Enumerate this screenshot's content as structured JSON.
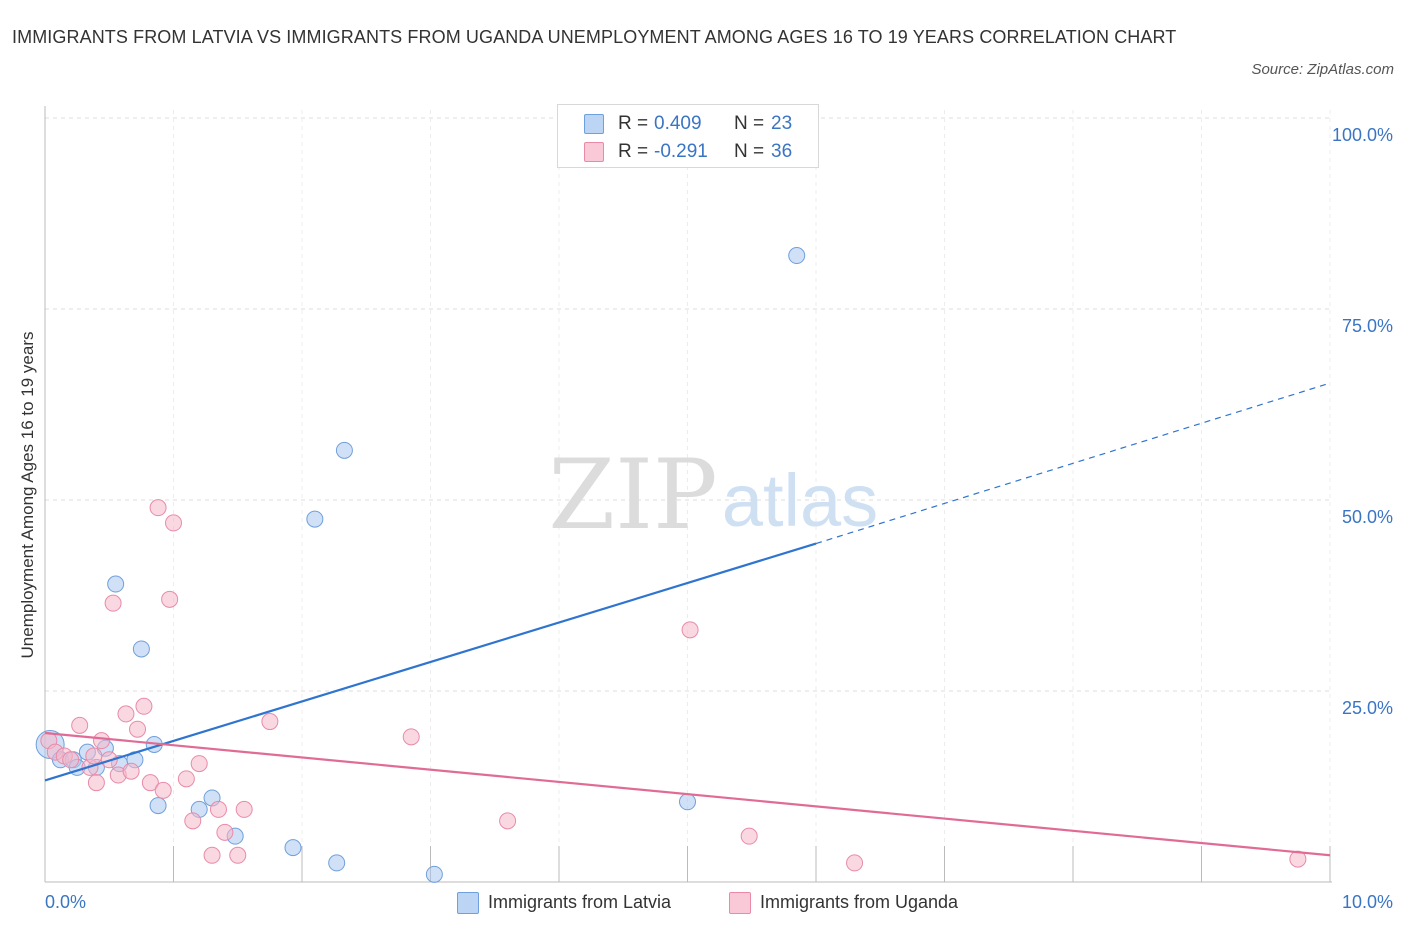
{
  "title": "IMMIGRANTS FROM LATVIA VS IMMIGRANTS FROM UGANDA UNEMPLOYMENT AMONG AGES 16 TO 19 YEARS CORRELATION CHART",
  "source": "Source: ZipAtlas.com",
  "watermark": {
    "zip": "ZIP",
    "atlas": "atlas"
  },
  "legend": {
    "r_label": "R =",
    "n_label": "N =",
    "latvia": {
      "r": "0.409",
      "n": "23"
    },
    "uganda": {
      "r": "-0.291",
      "n": "36"
    }
  },
  "colors": {
    "latvia_fill": "#a9c8f0",
    "latvia_stroke": "#6f9fdc",
    "latvia_line": "#2f74cf",
    "uganda_fill": "#f6b8cb",
    "uganda_stroke": "#e98aa8",
    "uganda_line": "#e06c96",
    "tick_label": "#3a75c4",
    "grid": "#dddddd"
  },
  "chart_data": {
    "type": "scatter",
    "title": "IMMIGRANTS FROM LATVIA VS IMMIGRANTS FROM UGANDA UNEMPLOYMENT AMONG AGES 16 TO 19 YEARS CORRELATION CHART",
    "xlabel": "",
    "ylabel": "Unemployment Among Ages 16 to 19 years",
    "xlim": [
      0,
      10
    ],
    "ylim": [
      0,
      100
    ],
    "x_tick_labels": [
      "0.0%",
      "10.0%"
    ],
    "y_ticks": [
      25,
      50,
      75,
      100
    ],
    "y_tick_labels": [
      "25.0%",
      "50.0%",
      "75.0%",
      "100.0%"
    ],
    "grid": true,
    "legend_placement": "top-center",
    "series": [
      {
        "name": "Immigrants from Latvia",
        "points": [
          {
            "x": 0.04,
            "y": 18.0
          },
          {
            "x": 0.12,
            "y": 16.0
          },
          {
            "x": 0.22,
            "y": 16.0
          },
          {
            "x": 0.25,
            "y": 15.0
          },
          {
            "x": 0.33,
            "y": 17.0
          },
          {
            "x": 0.4,
            "y": 15.0
          },
          {
            "x": 0.47,
            "y": 17.5
          },
          {
            "x": 0.55,
            "y": 39.0
          },
          {
            "x": 0.58,
            "y": 15.5
          },
          {
            "x": 0.7,
            "y": 16.0
          },
          {
            "x": 0.75,
            "y": 30.5
          },
          {
            "x": 0.85,
            "y": 18.0
          },
          {
            "x": 0.88,
            "y": 10.0
          },
          {
            "x": 1.2,
            "y": 9.5
          },
          {
            "x": 1.3,
            "y": 11.0
          },
          {
            "x": 1.48,
            "y": 6.0
          },
          {
            "x": 1.93,
            "y": 4.5
          },
          {
            "x": 2.1,
            "y": 47.5
          },
          {
            "x": 2.27,
            "y": 2.5
          },
          {
            "x": 2.33,
            "y": 56.5
          },
          {
            "x": 3.03,
            "y": 1.0
          },
          {
            "x": 5.0,
            "y": 10.5
          },
          {
            "x": 5.85,
            "y": 82.0
          }
        ],
        "trend": {
          "x": [
            0,
            6.0
          ],
          "y": [
            13.3,
            44.3
          ],
          "dashed_to": {
            "x": 10.0,
            "y": 65.3
          }
        }
      },
      {
        "name": "Immigrants from Uganda",
        "points": [
          {
            "x": 0.03,
            "y": 18.5
          },
          {
            "x": 0.08,
            "y": 17.0
          },
          {
            "x": 0.15,
            "y": 16.5
          },
          {
            "x": 0.2,
            "y": 16.0
          },
          {
            "x": 0.27,
            "y": 20.5
          },
          {
            "x": 0.35,
            "y": 15.0
          },
          {
            "x": 0.38,
            "y": 16.5
          },
          {
            "x": 0.4,
            "y": 13.0
          },
          {
            "x": 0.44,
            "y": 18.5
          },
          {
            "x": 0.5,
            "y": 16.0
          },
          {
            "x": 0.53,
            "y": 36.5
          },
          {
            "x": 0.57,
            "y": 14.0
          },
          {
            "x": 0.63,
            "y": 22.0
          },
          {
            "x": 0.67,
            "y": 14.5
          },
          {
            "x": 0.72,
            "y": 20.0
          },
          {
            "x": 0.77,
            "y": 23.0
          },
          {
            "x": 0.82,
            "y": 13.0
          },
          {
            "x": 0.88,
            "y": 49.0
          },
          {
            "x": 0.92,
            "y": 12.0
          },
          {
            "x": 0.97,
            "y": 37.0
          },
          {
            "x": 1.0,
            "y": 47.0
          },
          {
            "x": 1.1,
            "y": 13.5
          },
          {
            "x": 1.15,
            "y": 8.0
          },
          {
            "x": 1.2,
            "y": 15.5
          },
          {
            "x": 1.3,
            "y": 3.5
          },
          {
            "x": 1.35,
            "y": 9.5
          },
          {
            "x": 1.4,
            "y": 6.5
          },
          {
            "x": 1.5,
            "y": 3.5
          },
          {
            "x": 1.55,
            "y": 9.5
          },
          {
            "x": 1.75,
            "y": 21.0
          },
          {
            "x": 2.85,
            "y": 19.0
          },
          {
            "x": 3.6,
            "y": 8.0
          },
          {
            "x": 5.02,
            "y": 33.0
          },
          {
            "x": 5.48,
            "y": 6.0
          },
          {
            "x": 6.3,
            "y": 2.5
          },
          {
            "x": 9.75,
            "y": 3.0
          }
        ],
        "trend": {
          "x": [
            0,
            10.0
          ],
          "y": [
            19.5,
            3.5
          ]
        }
      }
    ]
  }
}
